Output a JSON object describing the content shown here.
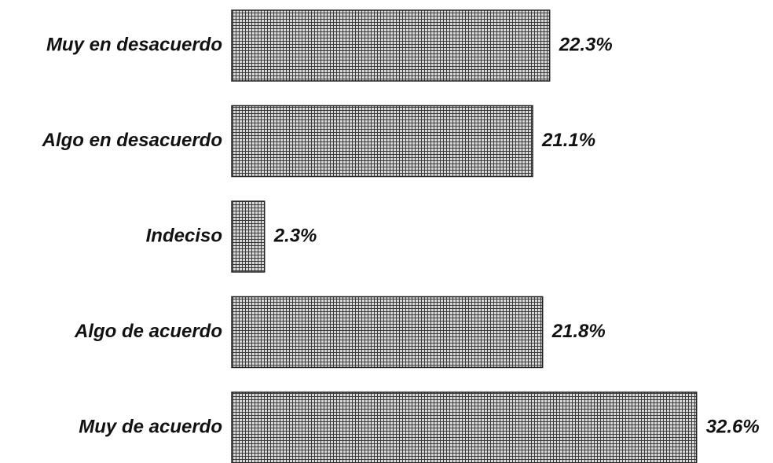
{
  "chart_data": {
    "type": "bar",
    "orientation": "horizontal",
    "categories": [
      "Muy en desacuerdo",
      "Algo en desacuerdo",
      "Indeciso",
      "Algo de acuerdo",
      "Muy de acuerdo"
    ],
    "values": [
      22.3,
      21.1,
      2.3,
      21.8,
      32.6
    ],
    "value_labels": [
      "22.3%",
      "21.1%",
      "2.3%",
      "21.8%",
      "32.6%"
    ],
    "unit": "%",
    "xlim": [
      0,
      32.6
    ],
    "grid": false,
    "legend": "none",
    "bar_fill": "crosshatch",
    "colors": {
      "bar_fill": "#d6d6d6",
      "bar_hatch": "#3a3a3a",
      "bar_border": "#222222",
      "text": "#111111"
    }
  }
}
